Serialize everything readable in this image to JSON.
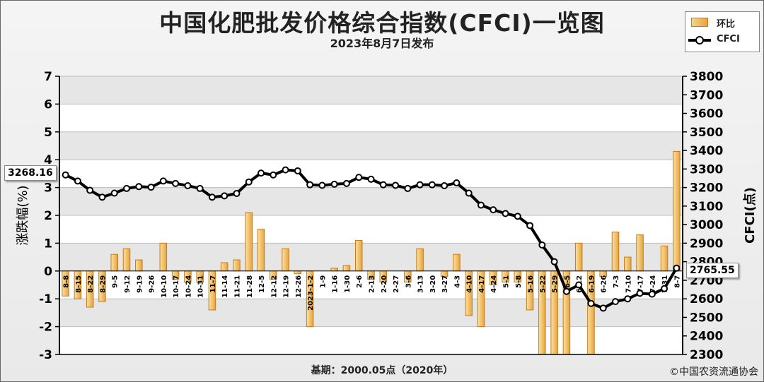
{
  "title": "中国化肥批发价格综合指数(CFCI)一览图",
  "subtitle": "2023年8月7日发布",
  "base_note": "基期：2000.05点（2020年）",
  "copyright": "©中国农资流通协会",
  "legend": {
    "bar_label": "环比",
    "line_label": "CFCI"
  },
  "colors": {
    "bar_fill": "#e8a33a",
    "bar_edge": "#c57b1c",
    "line": "#000000",
    "marker_fill": "#ffffff"
  },
  "callouts": {
    "start_value": "3268.16",
    "end_value": "2765.55"
  },
  "chart_data": {
    "type": "bar+line",
    "left_axis": {
      "label": "涨跌幅(%)",
      "range": [
        -3,
        7
      ],
      "ticks": [
        -3,
        -2,
        -1,
        0,
        1,
        2,
        3,
        4,
        5,
        6,
        7
      ]
    },
    "right_axis": {
      "label": "CFCI(点)",
      "range": [
        2300,
        3800
      ],
      "ticks": [
        2300,
        2400,
        2500,
        2600,
        2700,
        2800,
        2900,
        3000,
        3100,
        3200,
        3300,
        3400,
        3500,
        3600,
        3700,
        3800
      ]
    },
    "grid": true,
    "categories": [
      "8-8",
      "8-15",
      "8-22",
      "8-29",
      "9-5",
      "9-12",
      "9-19",
      "9-26",
      "10-10",
      "10-17",
      "10-24",
      "10-31",
      "11-7",
      "11-14",
      "11-21",
      "11-28",
      "12-5",
      "12-12",
      "12-19",
      "12-26",
      "2023-1-2",
      "1-9",
      "1-16",
      "1-30",
      "2-6",
      "2-13",
      "2-20",
      "2-27",
      "3-6",
      "3-13",
      "3-20",
      "3-27",
      "4-3",
      "4-10",
      "4-17",
      "4-24",
      "5-1",
      "5-8",
      "5-16",
      "5-22",
      "5-29",
      "6-5",
      "6-12",
      "6-19",
      "6-26",
      "7-3",
      "7-10",
      "7-17",
      "7-24",
      "7-31",
      "8-7"
    ],
    "series": [
      {
        "name": "环比",
        "type": "bar",
        "axis": "left",
        "values": [
          -0.9,
          -1.0,
          -1.3,
          -1.1,
          0.6,
          0.8,
          0.4,
          0.0,
          1.0,
          -0.3,
          -0.4,
          -0.4,
          -1.4,
          0.3,
          0.4,
          2.1,
          1.5,
          -0.3,
          0.8,
          -0.1,
          -2.0,
          0.0,
          0.1,
          0.2,
          1.1,
          -0.3,
          -0.4,
          0.0,
          -0.4,
          0.8,
          0.0,
          -0.2,
          0.6,
          -1.6,
          -2.0,
          -0.5,
          -0.4,
          -0.4,
          -1.4,
          -3.0,
          -3.0,
          -3.0,
          1.0,
          -3.0,
          -0.2,
          1.4,
          0.5,
          1.3,
          0.0,
          0.9,
          4.3
        ]
      },
      {
        "name": "CFCI",
        "type": "line",
        "axis": "right",
        "values": [
          3268.16,
          3235,
          3185,
          3148,
          3170,
          3195,
          3205,
          3202,
          3235,
          3222,
          3210,
          3195,
          3148,
          3155,
          3168,
          3230,
          3278,
          3268,
          3295,
          3290,
          3215,
          3212,
          3218,
          3222,
          3255,
          3245,
          3215,
          3212,
          3195,
          3215,
          3215,
          3210,
          3225,
          3170,
          3105,
          3080,
          3060,
          3045,
          2995,
          2890,
          2800,
          2640,
          2675,
          2575,
          2550,
          2585,
          2600,
          2630,
          2625,
          2655,
          2765.55
        ]
      }
    ]
  }
}
